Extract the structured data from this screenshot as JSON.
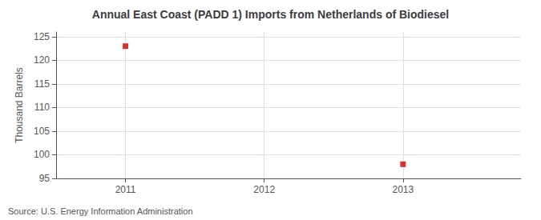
{
  "chart_data": {
    "type": "scatter",
    "title": "Annual East Coast (PADD 1) Imports from Netherlands of Biodiesel",
    "ylabel": "Thousand Barrels",
    "annotations": [
      "Source: U.S. Energy Information Administration"
    ],
    "x": [
      2011,
      2013
    ],
    "values": [
      123,
      98
    ],
    "color": "#cc0000",
    "marker": "square",
    "xlim": [
      2010.5,
      2013.85
    ],
    "xticks": [
      2011,
      2012,
      2013
    ],
    "ylim": [
      95,
      126
    ],
    "yticks": [
      95,
      100,
      105,
      110,
      115,
      120,
      125
    ],
    "grid": true
  }
}
